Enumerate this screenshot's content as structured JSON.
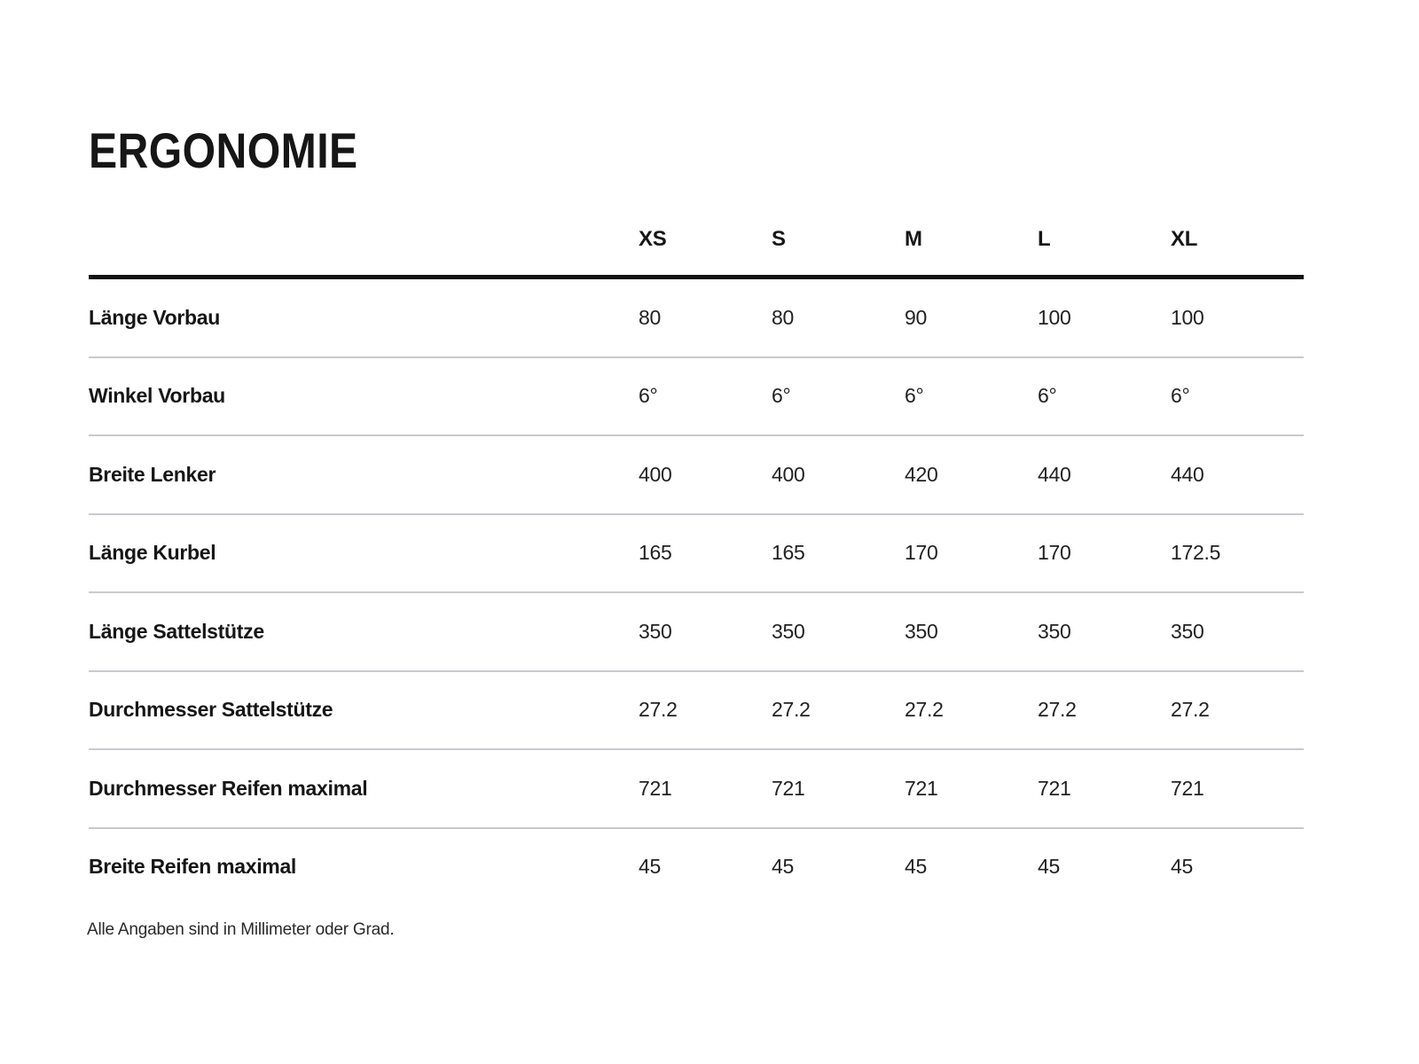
{
  "page": {
    "title": "ERGONOMIE",
    "footnote": "Alle Angaben sind in Millimeter oder Grad."
  },
  "table": {
    "columns": [
      "XS",
      "S",
      "M",
      "L",
      "XL"
    ],
    "rows": [
      {
        "label": "Länge Vorbau",
        "values": [
          "80",
          "80",
          "90",
          "100",
          "100"
        ]
      },
      {
        "label": "Winkel Vorbau",
        "values": [
          "6°",
          "6°",
          "6°",
          "6°",
          "6°"
        ]
      },
      {
        "label": "Breite Lenker",
        "values": [
          "400",
          "400",
          "420",
          "440",
          "440"
        ]
      },
      {
        "label": "Länge Kurbel",
        "values": [
          "165",
          "165",
          "170",
          "170",
          "172.5"
        ]
      },
      {
        "label": "Länge Sattelstütze",
        "values": [
          "350",
          "350",
          "350",
          "350",
          "350"
        ]
      },
      {
        "label": "Durchmesser Sattelstütze",
        "values": [
          "27.2",
          "27.2",
          "27.2",
          "27.2",
          "27.2"
        ]
      },
      {
        "label": "Durchmesser Reifen maximal",
        "values": [
          "721",
          "721",
          "721",
          "721",
          "721"
        ]
      },
      {
        "label": "Breite Reifen maximal",
        "values": [
          "45",
          "45",
          "45",
          "45",
          "45"
        ]
      }
    ]
  },
  "colors": {
    "text": "#161616",
    "header_rule": "#131313",
    "row_rule": "#c8cace",
    "background": "#ffffff"
  }
}
